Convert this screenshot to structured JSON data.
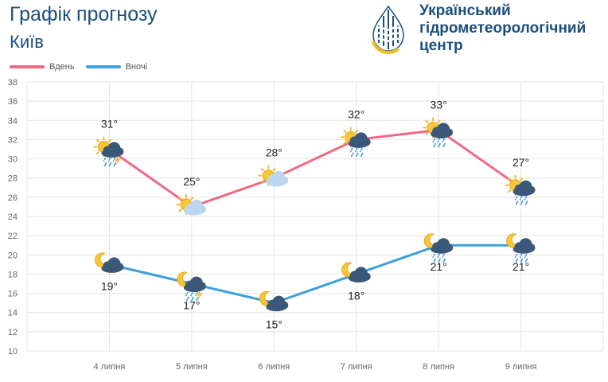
{
  "header": {
    "title": "Графік прогнозу",
    "city": "Київ"
  },
  "org": {
    "line1": "Український",
    "line2": "гідрометеорологічний",
    "line3": "центр"
  },
  "colors": {
    "day": "#ee6a84",
    "night": "#3d9fdb",
    "brand": "#1d4f7c",
    "grid": "#e4e4e4"
  },
  "chart_data": {
    "type": "line",
    "categories": [
      "4 липня",
      "5 липня",
      "6 липня",
      "7 липня",
      "8 липня",
      "9 липня"
    ],
    "series": [
      {
        "name": "Вдень",
        "values": [
          31,
          25,
          28,
          32,
          33,
          27
        ],
        "labels": [
          "31°",
          "25°",
          "28°",
          "32°",
          "33°",
          "27°"
        ],
        "icons": [
          "sun-cloud-thunderstorm-rain-icon",
          "sun-cloud-icon",
          "sun-cloud-icon",
          "sun-cloud-rain-icon",
          "sun-cloud-rain-icon",
          "sun-cloud-rain-icon"
        ]
      },
      {
        "name": "Вночі",
        "values": [
          19,
          17,
          15,
          18,
          21,
          21
        ],
        "labels": [
          "19°",
          "17°",
          "15°",
          "18°",
          "21°",
          "21°"
        ],
        "icons": [
          "moon-cloud-icon",
          "moon-cloud-thunderstorm-rain-icon",
          "moon-cloud-icon",
          "moon-cloud-icon",
          "moon-cloud-rain-icon",
          "moon-cloud-rain-icon"
        ]
      }
    ],
    "yticks": [
      "10",
      "12",
      "14",
      "16",
      "18",
      "20",
      "22",
      "24",
      "26",
      "28",
      "30",
      "32",
      "34",
      "36",
      "38"
    ],
    "ylim": [
      10,
      38
    ],
    "grid": true,
    "legend": "top-left"
  }
}
